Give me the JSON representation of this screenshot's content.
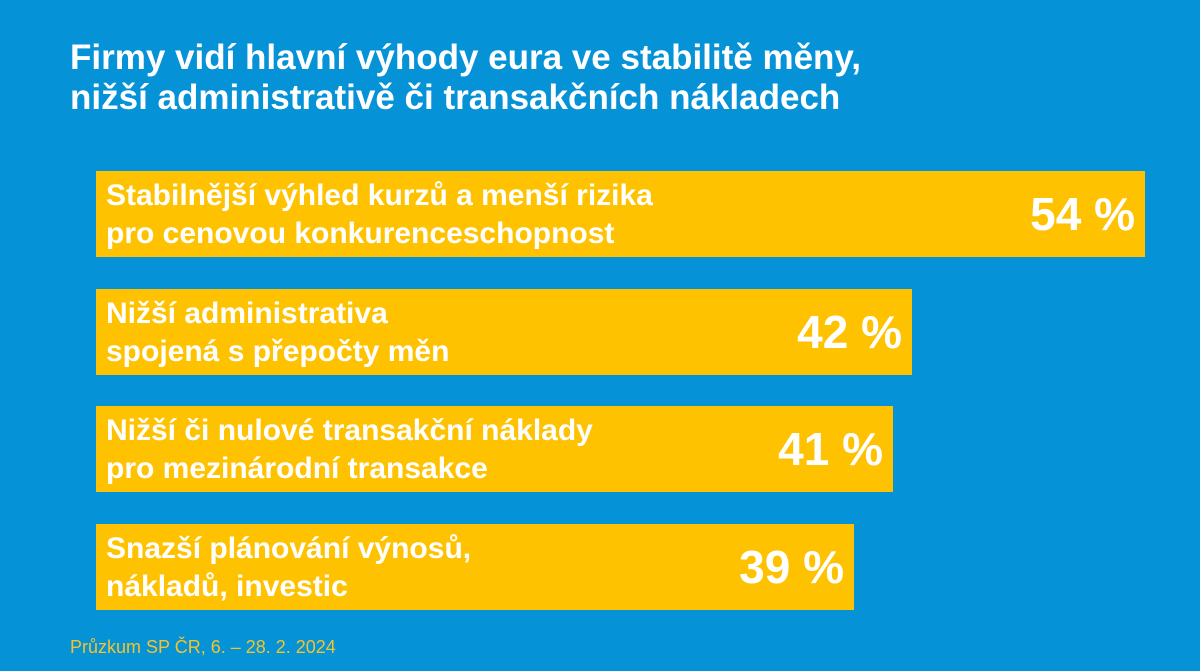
{
  "title_lines": [
    "Firmy vidí hlavní výhody eura ve stabilitě měny,",
    "nižší administrativě či transakčních nákladech"
  ],
  "source": "Průzkum SP ČR, 6. – 28. 2. 2024",
  "colors": {
    "background": "#0592d6",
    "bar": "#ffc200",
    "text": "#ffffff",
    "source_text": "#f5c32c"
  },
  "chart_data": {
    "type": "bar",
    "orientation": "horizontal",
    "title": "Firmy vidí hlavní výhody eura ve stabilitě měny, nižší administrativě či transakčních nákladech",
    "categories": [
      [
        "Stabilnější výhled kurzů a menší rizika",
        "pro cenovou konkurenceschopnost"
      ],
      [
        "Nižší administrativa",
        "spojená s přepočty měn"
      ],
      [
        "Nižší či nulové transakční náklady",
        "pro mezinárodní transakce"
      ],
      [
        "Snazší plánování výnosů,",
        "nákladů, investic"
      ]
    ],
    "values": [
      54,
      42,
      41,
      39
    ],
    "value_labels": [
      "54 %",
      "42 %",
      "41 %",
      "39 %"
    ],
    "unit": "%",
    "xlim": [
      0,
      100
    ],
    "grid": false,
    "legend": "none"
  }
}
